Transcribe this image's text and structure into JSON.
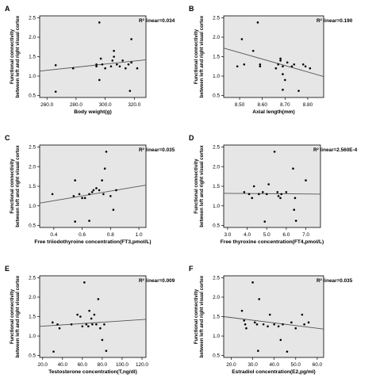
{
  "chart_data": [
    {
      "type": "scatter",
      "panel": "A",
      "r2_text": "R² linear=0.034",
      "xlabel": "Body weight(g)",
      "ylabel_lines": [
        "Functional connectivity",
        "between left and right visual cortex"
      ],
      "xlim": [
        255,
        328
      ],
      "ylim": [
        0.45,
        2.55
      ],
      "xticks": [
        260.0,
        280.0,
        300.0,
        320.0
      ],
      "xtick_labels": [
        "260.0",
        "280.0",
        "300.0",
        "320.0"
      ],
      "yticks": [
        0.5,
        1.0,
        1.5,
        2.0,
        2.5
      ],
      "ytick_labels": [
        "0.5",
        "1.0",
        "1.5",
        "2.0",
        "2.5"
      ],
      "points": [
        [
          266,
          0.6
        ],
        [
          266,
          1.28
        ],
        [
          278,
          1.2
        ],
        [
          294,
          1.25
        ],
        [
          294,
          1.3
        ],
        [
          296,
          0.9
        ],
        [
          296,
          2.38
        ],
        [
          297,
          1.45
        ],
        [
          298,
          1.3
        ],
        [
          300,
          1.2
        ],
        [
          304,
          1.25
        ],
        [
          305,
          1.4
        ],
        [
          306,
          1.65
        ],
        [
          306,
          1.5
        ],
        [
          308,
          1.3
        ],
        [
          310,
          1.25
        ],
        [
          312,
          1.4
        ],
        [
          314,
          1.2
        ],
        [
          316,
          1.3
        ],
        [
          317,
          0.62
        ],
        [
          318,
          1.35
        ],
        [
          318,
          1.95
        ],
        [
          322,
          1.2
        ]
      ],
      "fit_line": [
        [
          255,
          1.13
        ],
        [
          328,
          1.42
        ]
      ]
    },
    {
      "type": "scatter",
      "panel": "B",
      "r2_text": "R² linear=0.190",
      "xlabel": "Axial length(mm)",
      "ylabel_lines": [
        "Functional connectivity",
        "between left and right visual cortex"
      ],
      "xlim": [
        8.43,
        8.87
      ],
      "ylim": [
        0.45,
        2.55
      ],
      "xticks": [
        8.5,
        8.6,
        8.7,
        8.8
      ],
      "xtick_labels": [
        "8.50",
        "8.60",
        "8.70",
        "8.80"
      ],
      "yticks": [
        0.5,
        1.0,
        1.5,
        2.0,
        2.5
      ],
      "ytick_labels": [
        "0.5",
        "1.0",
        "1.5",
        "2.0",
        "2.5"
      ],
      "points": [
        [
          8.49,
          1.25
        ],
        [
          8.51,
          1.95
        ],
        [
          8.52,
          1.3
        ],
        [
          8.56,
          1.65
        ],
        [
          8.58,
          2.38
        ],
        [
          8.59,
          1.3
        ],
        [
          8.59,
          1.25
        ],
        [
          8.66,
          1.2
        ],
        [
          8.67,
          1.3
        ],
        [
          8.68,
          1.4
        ],
        [
          8.68,
          1.45
        ],
        [
          8.69,
          1.25
        ],
        [
          8.69,
          1.05
        ],
        [
          8.69,
          0.65
        ],
        [
          8.7,
          0.9
        ],
        [
          8.71,
          1.35
        ],
        [
          8.73,
          1.25
        ],
        [
          8.74,
          1.3
        ],
        [
          8.76,
          0.62
        ],
        [
          8.78,
          1.3
        ],
        [
          8.79,
          1.25
        ],
        [
          8.81,
          1.2
        ]
      ],
      "fit_line": [
        [
          8.43,
          1.72
        ],
        [
          8.87,
          0.99
        ]
      ]
    },
    {
      "type": "scatter",
      "panel": "C",
      "r2_text": "R² linear=0.035",
      "xlabel": "Free triiodothyroine concentration(FT3,pmol/L)",
      "ylabel_lines": [
        "Functional connectivity",
        "between left and right visual cortex"
      ],
      "xlim": [
        0.3,
        1.05
      ],
      "ylim": [
        0.45,
        2.55
      ],
      "xticks": [
        0.4,
        0.6,
        0.8,
        1.0
      ],
      "xtick_labels": [
        "0.4",
        "0.6",
        "0.8",
        "1.0"
      ],
      "yticks": [
        0.5,
        1.0,
        1.5,
        2.0,
        2.5
      ],
      "ytick_labels": [
        "0.5",
        "1.0",
        "1.5",
        "2.0",
        "2.5"
      ],
      "points": [
        [
          0.39,
          1.3
        ],
        [
          0.54,
          1.25
        ],
        [
          0.55,
          1.65
        ],
        [
          0.55,
          0.6
        ],
        [
          0.58,
          1.3
        ],
        [
          0.6,
          1.2
        ],
        [
          0.62,
          1.2
        ],
        [
          0.65,
          0.62
        ],
        [
          0.65,
          1.3
        ],
        [
          0.67,
          1.35
        ],
        [
          0.68,
          1.4
        ],
        [
          0.7,
          1.45
        ],
        [
          0.72,
          1.4
        ],
        [
          0.74,
          1.65
        ],
        [
          0.75,
          1.3
        ],
        [
          0.76,
          1.95
        ],
        [
          0.77,
          2.38
        ],
        [
          0.8,
          1.25
        ],
        [
          0.82,
          0.9
        ],
        [
          0.84,
          1.4
        ]
      ],
      "fit_line": [
        [
          0.3,
          1.07
        ],
        [
          1.05,
          1.53
        ]
      ]
    },
    {
      "type": "scatter",
      "panel": "D",
      "r2_text": "R² linear=2.560E-4",
      "xlabel": "Free thyroxine concentration(FT4,pmol/L)",
      "ylabel_lines": [
        "Functional connectivity",
        "between left and right visual cortex"
      ],
      "xlim": [
        2.8,
        7.75
      ],
      "ylim": [
        0.45,
        2.55
      ],
      "xticks": [
        3.0,
        4.0,
        5.0,
        6.0,
        7.0
      ],
      "xtick_labels": [
        "3.0",
        "4.0",
        "5.0",
        "6.0",
        "7.0"
      ],
      "yticks": [
        0.5,
        1.0,
        1.5,
        2.0,
        2.5
      ],
      "ytick_labels": [
        "0.5",
        "1.0",
        "1.5",
        "2.0",
        "2.5"
      ],
      "points": [
        [
          3.85,
          1.35
        ],
        [
          4.1,
          1.3
        ],
        [
          4.25,
          1.2
        ],
        [
          4.35,
          1.5
        ],
        [
          4.6,
          1.3
        ],
        [
          4.8,
          1.35
        ],
        [
          4.9,
          0.6
        ],
        [
          5.0,
          1.3
        ],
        [
          5.1,
          1.55
        ],
        [
          5.4,
          2.38
        ],
        [
          5.55,
          1.35
        ],
        [
          5.6,
          1.25
        ],
        [
          5.7,
          1.2
        ],
        [
          5.75,
          1.3
        ],
        [
          6.0,
          1.35
        ],
        [
          6.35,
          1.95
        ],
        [
          6.4,
          0.9
        ],
        [
          6.45,
          1.2
        ],
        [
          6.5,
          0.62
        ],
        [
          7.0,
          1.65
        ]
      ],
      "fit_line": [
        [
          2.8,
          1.32
        ],
        [
          7.75,
          1.3
        ]
      ]
    },
    {
      "type": "scatter",
      "panel": "E",
      "r2_text": "R² linear=0.009",
      "xlabel": "Testosterone concentration(T,ng/dl)",
      "ylabel_lines": [
        "Functional connectivity",
        "between left and right visual cortex"
      ],
      "xlim": [
        17,
        124
      ],
      "ylim": [
        0.45,
        2.55
      ],
      "xticks": [
        20.0,
        40.0,
        60.0,
        80.0,
        100.0,
        120.0
      ],
      "xtick_labels": [
        "20.0",
        "40.0",
        "60.0",
        "80.0",
        "100.0",
        "120.0"
      ],
      "yticks": [
        0.5,
        1.0,
        1.5,
        2.0,
        2.5
      ],
      "ytick_labels": [
        "0.5",
        "1.0",
        "1.5",
        "2.0",
        "2.5"
      ],
      "points": [
        [
          30,
          1.35
        ],
        [
          31,
          0.6
        ],
        [
          35,
          1.3
        ],
        [
          37,
          1.2
        ],
        [
          49,
          1.3
        ],
        [
          55,
          1.55
        ],
        [
          58,
          1.5
        ],
        [
          60,
          1.25
        ],
        [
          62,
          2.38
        ],
        [
          64,
          1.3
        ],
        [
          66,
          1.25
        ],
        [
          67,
          1.65
        ],
        [
          69,
          1.45
        ],
        [
          70,
          1.3
        ],
        [
          72,
          1.55
        ],
        [
          74,
          1.3
        ],
        [
          76,
          1.95
        ],
        [
          78,
          1.2
        ],
        [
          80,
          0.9
        ],
        [
          82,
          1.3
        ],
        [
          84,
          0.62
        ]
      ],
      "fit_line": [
        [
          17,
          1.25
        ],
        [
          124,
          1.43
        ]
      ]
    },
    {
      "type": "scatter",
      "panel": "F",
      "r2_text": "R² linear=0.035",
      "xlabel": "Estradiol concentration(E2,pg/ml)",
      "ylabel_lines": [
        "Functional connectivity",
        "between left and right visual cortex"
      ],
      "xlim": [
        16.5,
        63
      ],
      "ylim": [
        0.45,
        2.55
      ],
      "xticks": [
        20.0,
        30.0,
        40.0,
        50.0,
        60.0
      ],
      "xtick_labels": [
        "20.0",
        "30.0",
        "40.0",
        "50.0",
        "60.0"
      ],
      "yticks": [
        0.5,
        1.0,
        1.5,
        2.0,
        2.5
      ],
      "ytick_labels": [
        "0.5",
        "1.0",
        "1.5",
        "2.0",
        "2.5"
      ],
      "points": [
        [
          25,
          1.65
        ],
        [
          26,
          1.4
        ],
        [
          26.5,
          1.3
        ],
        [
          27,
          1.2
        ],
        [
          30,
          2.38
        ],
        [
          31,
          1.35
        ],
        [
          32,
          1.3
        ],
        [
          32.5,
          0.62
        ],
        [
          33,
          1.95
        ],
        [
          35,
          1.3
        ],
        [
          37,
          1.25
        ],
        [
          38,
          1.55
        ],
        [
          40,
          1.3
        ],
        [
          42,
          1.25
        ],
        [
          43,
          0.9
        ],
        [
          44,
          1.3
        ],
        [
          46,
          0.6
        ],
        [
          48,
          1.35
        ],
        [
          50,
          1.2
        ],
        [
          53,
          1.55
        ],
        [
          54,
          1.3
        ],
        [
          56,
          1.35
        ]
      ],
      "fit_line": [
        [
          16.5,
          1.5
        ],
        [
          63,
          1.18
        ]
      ]
    }
  ]
}
